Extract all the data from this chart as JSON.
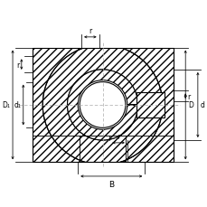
{
  "bg_color": "#ffffff",
  "line_color": "#000000",
  "fig_width": 2.3,
  "fig_height": 2.3,
  "dpi": 100,
  "labels": {
    "D1": "D₁",
    "d1": "d₁",
    "B": "B",
    "d": "d",
    "D": "D",
    "r1": "r",
    "r2": "r",
    "r3": "r",
    "r4": "r"
  },
  "lw_main": 0.8,
  "lw_dim": 0.6,
  "hatch": "////",
  "cl_color": "#aaaaaa",
  "fs": 5.5
}
